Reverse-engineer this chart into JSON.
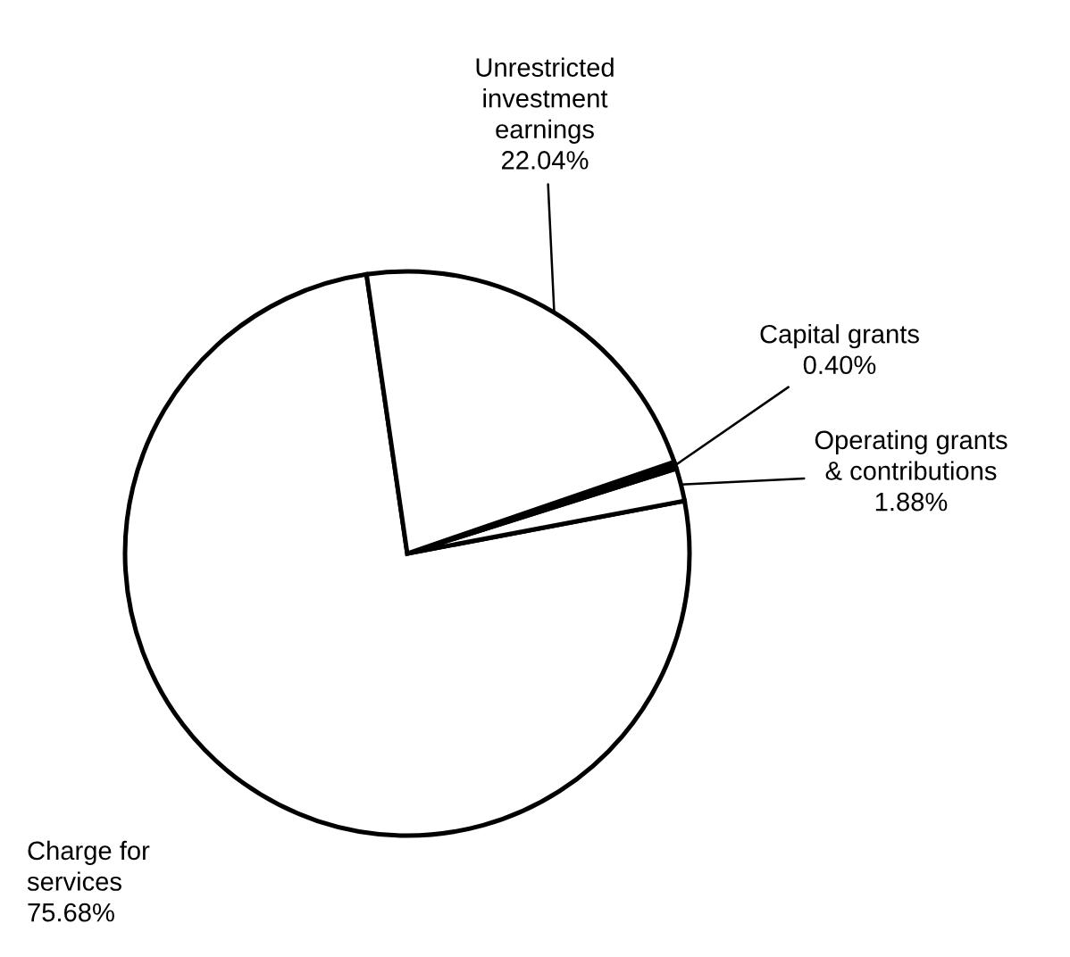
{
  "chart_data": {
    "type": "pie",
    "categories": [
      "Charge for\nservices",
      "Operating grants\n& contributions",
      "Capital grants",
      "Unrestricted\ninvestment\nearnings"
    ],
    "values": [
      75.68,
      1.88,
      0.4,
      22.04
    ],
    "value_labels": [
      "75.68%",
      "1.88%",
      "0.40%",
      "22.04%"
    ],
    "colors": [
      "#ffffff",
      "#ffffff",
      "#000000",
      "#ffffff"
    ],
    "legend": false
  }
}
